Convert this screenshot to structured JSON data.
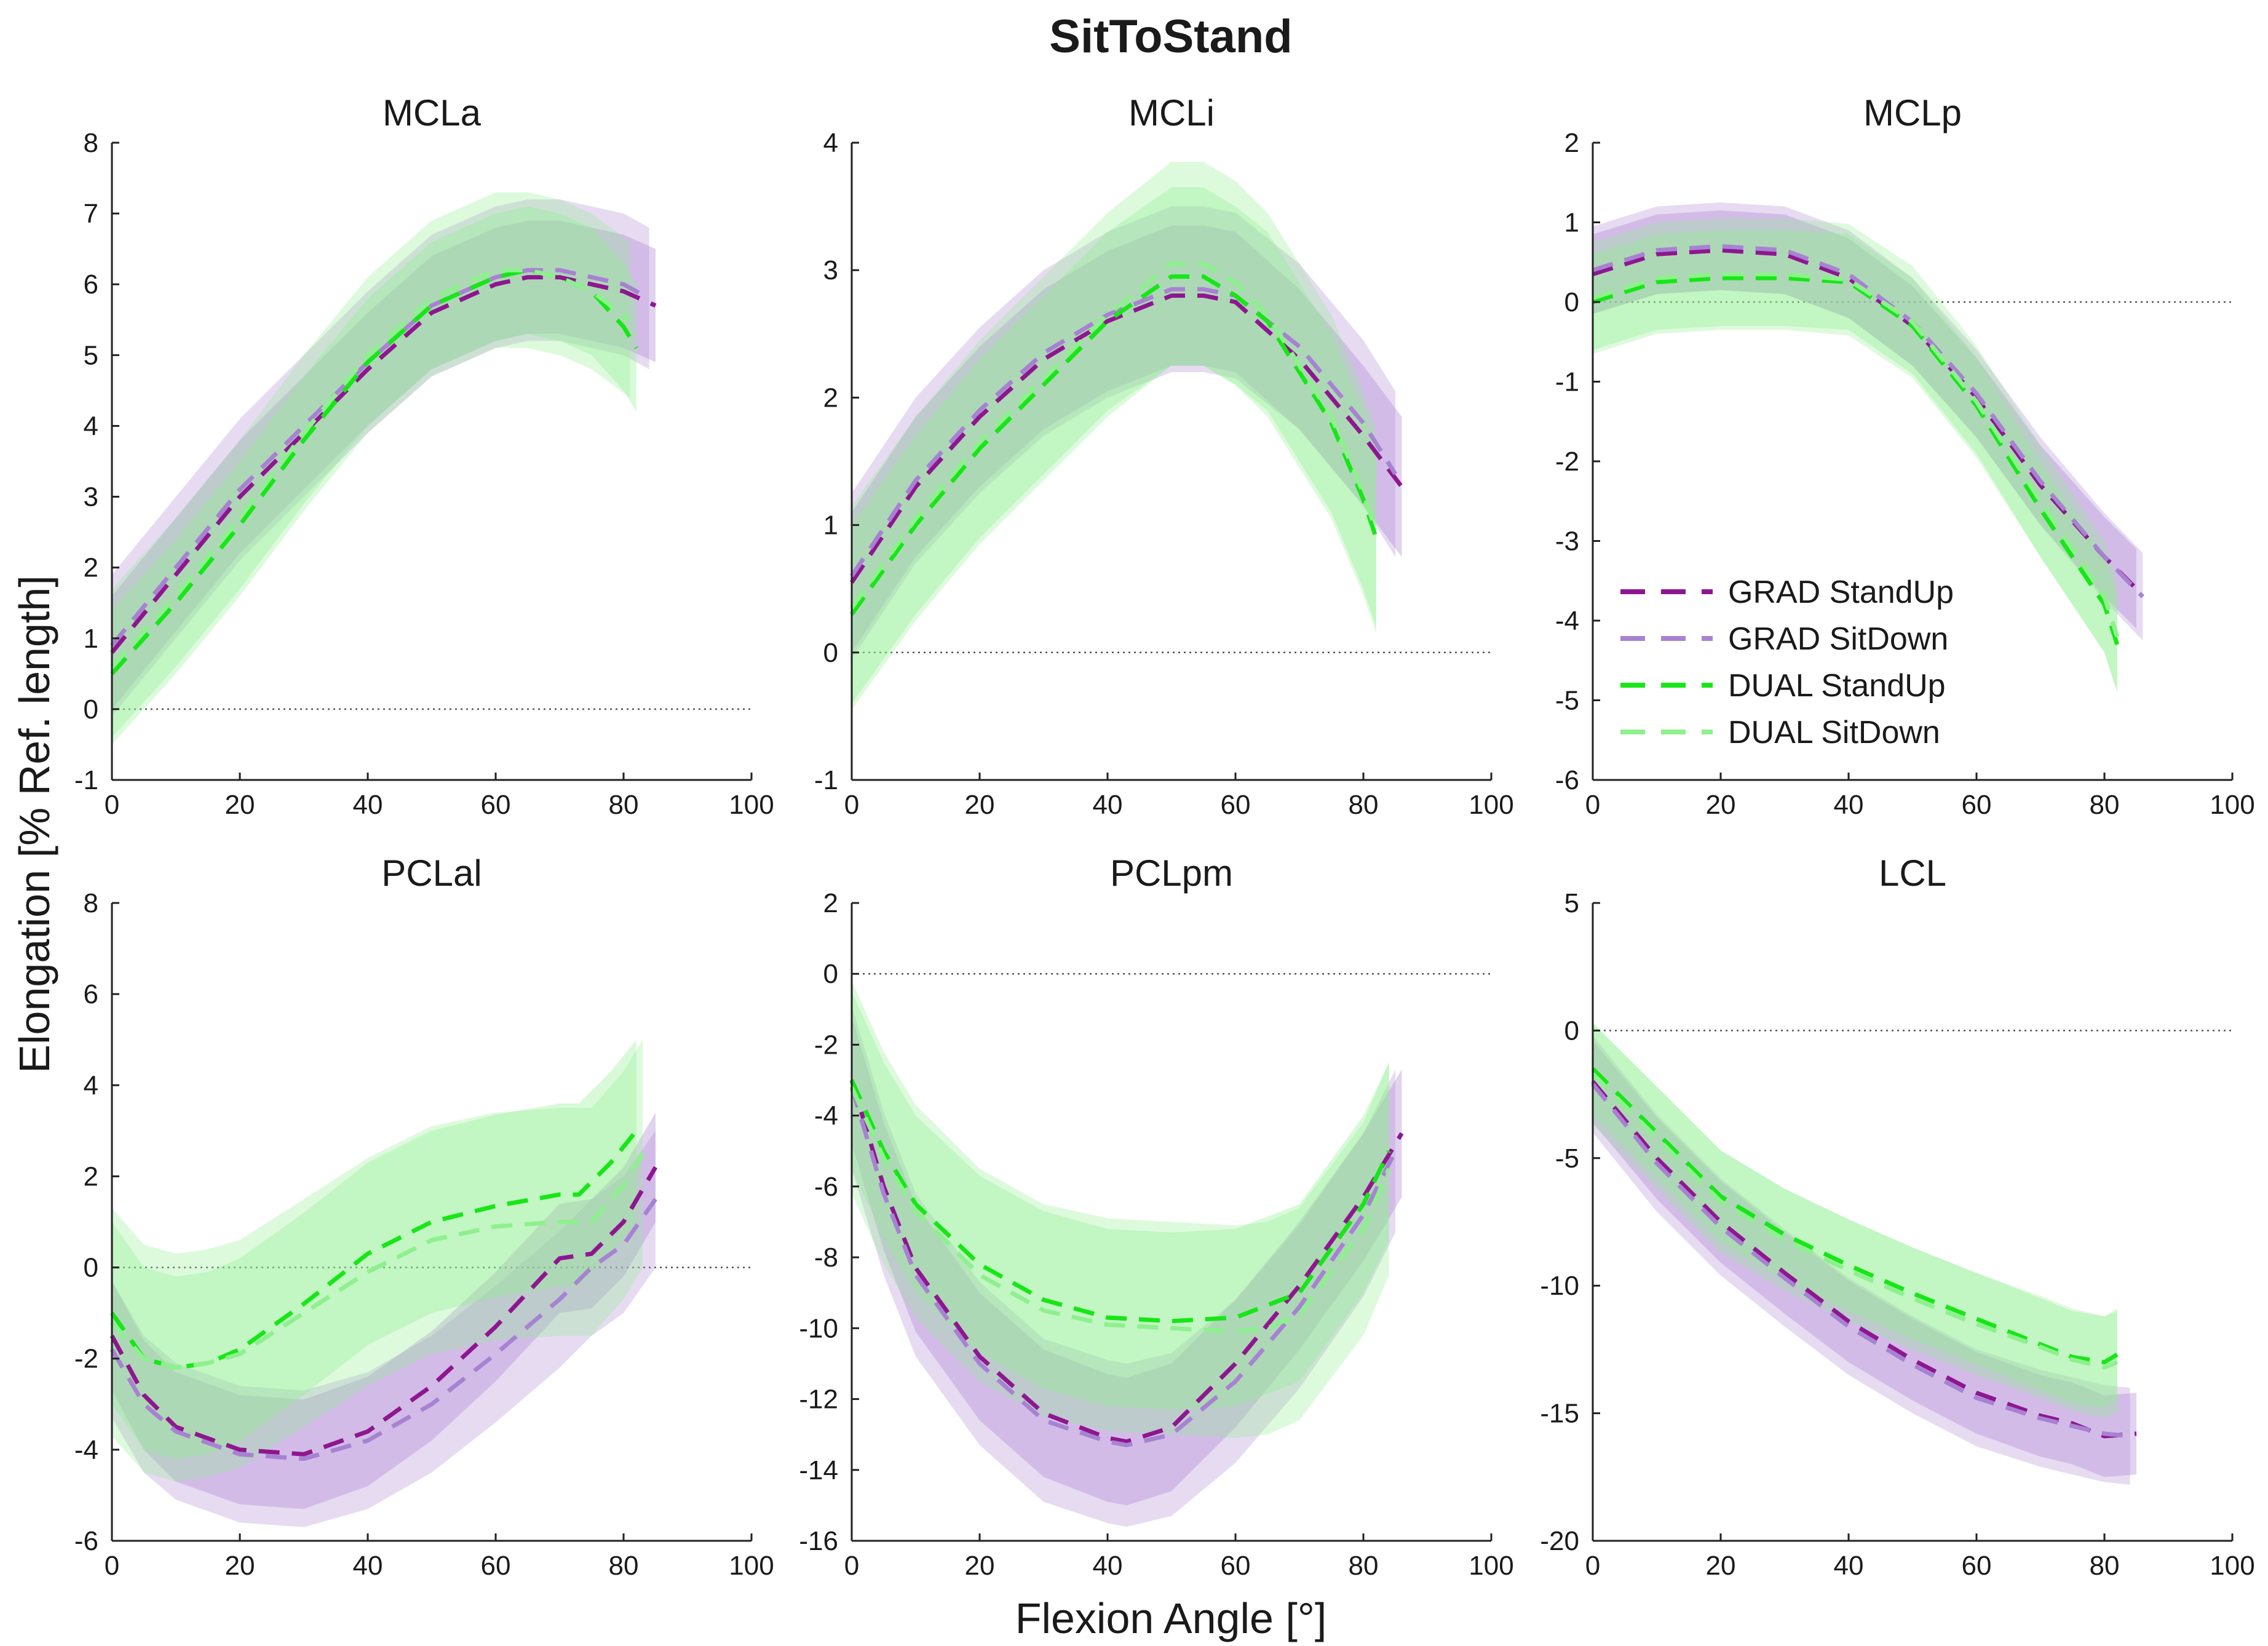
{
  "chart_data": {
    "type": "line",
    "title": "SitToStand",
    "xlabel": "Flexion Angle [°]",
    "ylabel": "Elongation [% Ref. length]",
    "legend": {
      "placement": "inside panel MCLp, lower-left",
      "entries": [
        {
          "name": "GRAD StandUp",
          "color": "#8e178f",
          "style": "dashed"
        },
        {
          "name": "GRAD SitDown",
          "color": "#a882d2",
          "style": "dashed"
        },
        {
          "name": "DUAL StandUp",
          "color": "#17e617",
          "style": "dashed"
        },
        {
          "name": "DUAL SitDown",
          "color": "#8ef08e",
          "style": "dashed"
        }
      ]
    },
    "band_colors": {
      "grad": "#b58fd8",
      "dual": "#8ef08e"
    },
    "panels": [
      {
        "title": "MCLa",
        "xlim": [
          0,
          100
        ],
        "ylim": [
          -1,
          8
        ],
        "xticks": [
          "0",
          "20",
          "40",
          "60",
          "80",
          "100"
        ],
        "yticks": [
          "-1",
          "0",
          "1",
          "2",
          "3",
          "4",
          "5",
          "6",
          "7",
          "8"
        ],
        "series": [
          {
            "name": "GRAD StandUp",
            "x": [
              0,
              10,
              20,
              30,
              40,
              50,
              60,
              65,
              70,
              80,
              85
            ],
            "y": [
              0.8,
              1.9,
              3.0,
              3.9,
              4.8,
              5.6,
              6.0,
              6.1,
              6.1,
              5.9,
              5.7
            ],
            "sd": 0.8
          },
          {
            "name": "GRAD SitDown",
            "x": [
              0,
              10,
              20,
              30,
              40,
              50,
              60,
              65,
              70,
              80,
              84
            ],
            "y": [
              0.9,
              2.0,
              3.1,
              4.0,
              4.9,
              5.7,
              6.1,
              6.2,
              6.2,
              6.0,
              5.8
            ],
            "sd": 1.0
          },
          {
            "name": "DUAL StandUp",
            "x": [
              0,
              10,
              20,
              30,
              40,
              50,
              60,
              65,
              70,
              75,
              80,
              82
            ],
            "y": [
              0.5,
              1.5,
              2.6,
              3.8,
              4.9,
              5.7,
              6.1,
              6.2,
              6.1,
              5.9,
              5.4,
              5.1
            ],
            "sd": 0.9
          },
          {
            "name": "DUAL SitDown",
            "x": [
              0,
              10,
              20,
              30,
              40,
              50,
              60,
              65,
              70,
              75,
              81
            ],
            "y": [
              0.6,
              1.6,
              2.7,
              3.9,
              5.0,
              5.8,
              6.2,
              6.2,
              6.1,
              5.9,
              5.5
            ],
            "sd": 1.1
          }
        ]
      },
      {
        "title": "MCLi",
        "xlim": [
          0,
          100
        ],
        "ylim": [
          -1,
          4
        ],
        "xticks": [
          "0",
          "20",
          "40",
          "60",
          "80",
          "100"
        ],
        "yticks": [
          "-1",
          "0",
          "1",
          "2",
          "3",
          "4"
        ],
        "series": [
          {
            "name": "GRAD StandUp",
            "x": [
              0,
              10,
              20,
              30,
              40,
              50,
              55,
              60,
              70,
              80,
              86
            ],
            "y": [
              0.55,
              1.3,
              1.85,
              2.3,
              2.6,
              2.8,
              2.8,
              2.75,
              2.3,
              1.7,
              1.3
            ],
            "sd": 0.55
          },
          {
            "name": "GRAD SitDown",
            "x": [
              0,
              10,
              20,
              30,
              40,
              50,
              55,
              60,
              70,
              80,
              85
            ],
            "y": [
              0.6,
              1.35,
              1.9,
              2.35,
              2.65,
              2.85,
              2.85,
              2.8,
              2.4,
              1.8,
              1.4
            ],
            "sd": 0.65
          },
          {
            "name": "DUAL StandUp",
            "x": [
              0,
              10,
              20,
              30,
              40,
              50,
              55,
              60,
              65,
              70,
              75,
              80,
              82
            ],
            "y": [
              0.3,
              1.0,
              1.6,
              2.1,
              2.6,
              2.95,
              2.95,
              2.8,
              2.6,
              2.2,
              1.8,
              1.2,
              0.9
            ],
            "sd": 0.7
          },
          {
            "name": "DUAL SitDown",
            "x": [
              0,
              10,
              20,
              30,
              40,
              50,
              55,
              60,
              65,
              70,
              75,
              80,
              82
            ],
            "y": [
              0.35,
              1.05,
              1.65,
              2.15,
              2.65,
              3.05,
              3.05,
              2.9,
              2.65,
              2.25,
              1.85,
              1.25,
              0.95
            ],
            "sd": 0.8
          }
        ]
      },
      {
        "title": "MCLp",
        "xlim": [
          0,
          100
        ],
        "ylim": [
          -6,
          2
        ],
        "xticks": [
          "0",
          "20",
          "40",
          "60",
          "80",
          "100"
        ],
        "yticks": [
          "-6",
          "-5",
          "-4",
          "-3",
          "-2",
          "-1",
          "0",
          "1",
          "2"
        ],
        "series": [
          {
            "name": "GRAD StandUp",
            "x": [
              0,
              10,
              20,
              30,
              40,
              50,
              60,
              70,
              80,
              85
            ],
            "y": [
              0.35,
              0.6,
              0.65,
              0.6,
              0.3,
              -0.3,
              -1.2,
              -2.3,
              -3.2,
              -3.6
            ],
            "sd": 0.5
          },
          {
            "name": "GRAD SitDown",
            "x": [
              0,
              10,
              20,
              30,
              40,
              50,
              60,
              70,
              80,
              86
            ],
            "y": [
              0.4,
              0.65,
              0.7,
              0.65,
              0.35,
              -0.25,
              -1.15,
              -2.25,
              -3.2,
              -3.7
            ],
            "sd": 0.55
          },
          {
            "name": "DUAL StandUp",
            "x": [
              0,
              10,
              20,
              30,
              40,
              50,
              60,
              70,
              80,
              82
            ],
            "y": [
              0.0,
              0.25,
              0.3,
              0.3,
              0.25,
              -0.3,
              -1.3,
              -2.6,
              -3.8,
              -4.3
            ],
            "sd": 0.6
          },
          {
            "name": "DUAL SitDown",
            "x": [
              0,
              10,
              20,
              30,
              40,
              50,
              60,
              70,
              80,
              82
            ],
            "y": [
              0.05,
              0.3,
              0.35,
              0.35,
              0.28,
              -0.25,
              -1.25,
              -2.5,
              -3.7,
              -4.2
            ],
            "sd": 0.7
          }
        ]
      },
      {
        "title": "PCLal",
        "xlim": [
          0,
          100
        ],
        "ylim": [
          -6,
          8
        ],
        "xticks": [
          "0",
          "20",
          "40",
          "60",
          "80",
          "100"
        ],
        "yticks": [
          "-6",
          "-4",
          "-2",
          "0",
          "2",
          "4",
          "6",
          "8"
        ],
        "series": [
          {
            "name": "GRAD StandUp",
            "x": [
              0,
              5,
              10,
              20,
              30,
              40,
              50,
              60,
              70,
              75,
              80,
              85
            ],
            "y": [
              -1.5,
              -2.8,
              -3.5,
              -4.0,
              -4.1,
              -3.6,
              -2.6,
              -1.3,
              0.2,
              0.3,
              1.0,
              2.2
            ],
            "sd": 1.2
          },
          {
            "name": "GRAD SitDown",
            "x": [
              0,
              5,
              10,
              20,
              30,
              40,
              50,
              60,
              70,
              75,
              80,
              85
            ],
            "y": [
              -1.8,
              -3.0,
              -3.6,
              -4.1,
              -4.2,
              -3.8,
              -3.0,
              -1.9,
              -0.7,
              0.0,
              0.5,
              1.5
            ],
            "sd": 1.5
          },
          {
            "name": "DUAL StandUp",
            "x": [
              0,
              5,
              10,
              15,
              20,
              30,
              40,
              50,
              60,
              70,
              73,
              78,
              82
            ],
            "y": [
              -1.0,
              -2.0,
              -2.2,
              -2.1,
              -1.8,
              -0.8,
              0.3,
              1.0,
              1.35,
              1.6,
              1.6,
              2.3,
              3.0
            ],
            "sd": 2.0
          },
          {
            "name": "DUAL SitDown",
            "x": [
              0,
              5,
              10,
              15,
              20,
              30,
              40,
              50,
              60,
              70,
              75,
              80,
              83
            ],
            "y": [
              -1.2,
              -2.0,
              -2.2,
              -2.1,
              -1.9,
              -1.0,
              -0.1,
              0.6,
              0.9,
              1.0,
              1.0,
              1.8,
              2.5
            ],
            "sd": 2.5
          }
        ]
      },
      {
        "title": "PCLpm",
        "xlim": [
          0,
          100
        ],
        "ylim": [
          -16,
          2
        ],
        "xticks": [
          "0",
          "20",
          "40",
          "60",
          "80",
          "100"
        ],
        "yticks": [
          "-16",
          "-14",
          "-12",
          "-10",
          "-8",
          "-6",
          "-4",
          "-2",
          "0",
          "2"
        ],
        "series": [
          {
            "name": "GRAD StandUp",
            "x": [
              0,
              5,
              10,
              20,
              30,
              40,
              43,
              50,
              60,
              70,
              80,
              86
            ],
            "y": [
              -3.0,
              -6.0,
              -8.3,
              -10.8,
              -12.4,
              -13.1,
              -13.2,
              -12.8,
              -11.0,
              -8.8,
              -6.3,
              -4.5
            ],
            "sd": 1.8
          },
          {
            "name": "GRAD SitDown",
            "x": [
              0,
              5,
              10,
              20,
              30,
              40,
              43,
              50,
              60,
              70,
              80,
              85
            ],
            "y": [
              -3.2,
              -6.2,
              -8.5,
              -11.0,
              -12.6,
              -13.2,
              -13.3,
              -13.0,
              -11.5,
              -9.4,
              -6.8,
              -5.0
            ],
            "sd": 2.3
          },
          {
            "name": "DUAL StandUp",
            "x": [
              0,
              5,
              10,
              20,
              30,
              40,
              50,
              60,
              70,
              80,
              84
            ],
            "y": [
              -3.0,
              -5.0,
              -6.5,
              -8.2,
              -9.2,
              -9.7,
              -9.8,
              -9.7,
              -9.0,
              -6.5,
              -5.0
            ],
            "sd": 2.5
          },
          {
            "name": "DUAL SitDown",
            "x": [
              0,
              5,
              10,
              20,
              30,
              40,
              50,
              60,
              65,
              70,
              80,
              84
            ],
            "y": [
              -3.2,
              -5.2,
              -6.7,
              -8.5,
              -9.5,
              -9.9,
              -10.0,
              -10.1,
              -10.0,
              -9.6,
              -7.2,
              -5.5
            ],
            "sd": 3.0
          }
        ]
      },
      {
        "title": "LCL",
        "xlim": [
          0,
          100
        ],
        "ylim": [
          -20,
          5
        ],
        "xticks": [
          "0",
          "20",
          "40",
          "60",
          "80",
          "100"
        ],
        "yticks": [
          "-20",
          "-15",
          "-10",
          "-5",
          "0",
          "5"
        ],
        "series": [
          {
            "name": "GRAD StandUp",
            "x": [
              0,
              10,
              20,
              30,
              40,
              50,
              60,
              70,
              75,
              80,
              85
            ],
            "y": [
              -2.0,
              -5.0,
              -7.5,
              -9.5,
              -11.4,
              -12.9,
              -14.2,
              -15.1,
              -15.4,
              -15.9,
              -15.8
            ],
            "sd": 1.6
          },
          {
            "name": "GRAD SitDown",
            "x": [
              0,
              10,
              20,
              30,
              40,
              50,
              60,
              70,
              75,
              80,
              84
            ],
            "y": [
              -2.1,
              -5.2,
              -7.7,
              -9.7,
              -11.6,
              -13.1,
              -14.4,
              -15.2,
              -15.5,
              -15.8,
              -15.9
            ],
            "sd": 1.9
          },
          {
            "name": "DUAL StandUp",
            "x": [
              0,
              10,
              20,
              30,
              40,
              50,
              60,
              70,
              75,
              80,
              82
            ],
            "y": [
              -1.5,
              -4.0,
              -6.5,
              -8.0,
              -9.2,
              -10.3,
              -11.3,
              -12.3,
              -12.8,
              -13.0,
              -12.7
            ],
            "sd": 1.8
          },
          {
            "name": "DUAL SitDown",
            "x": [
              0,
              10,
              20,
              30,
              40,
              50,
              60,
              70,
              75,
              80,
              82
            ],
            "y": [
              -1.7,
              -4.2,
              -6.7,
              -8.2,
              -9.4,
              -10.5,
              -11.5,
              -12.4,
              -12.9,
              -13.2,
              -13.0
            ],
            "sd": 2.0
          }
        ]
      }
    ]
  }
}
